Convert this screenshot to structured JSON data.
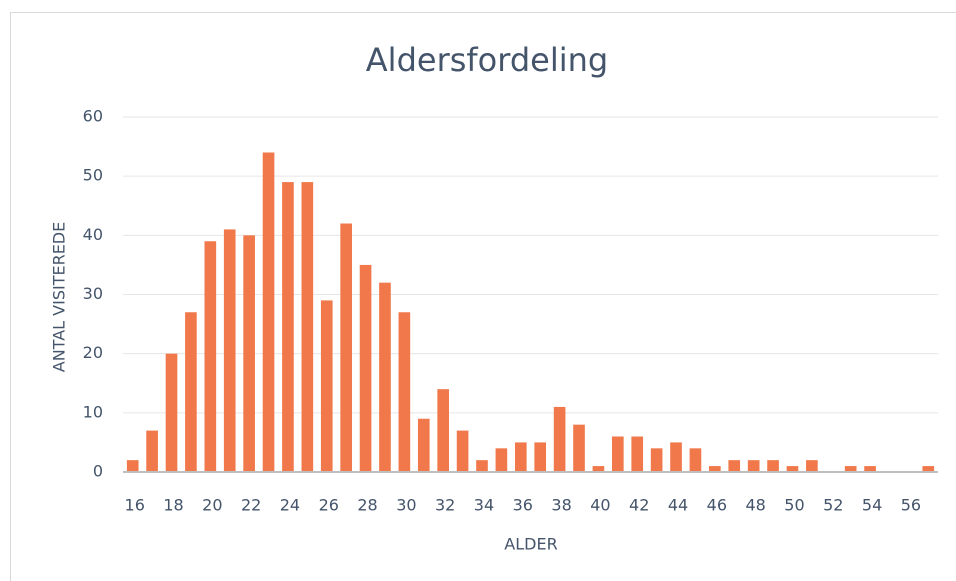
{
  "chart_data": {
    "type": "bar",
    "title": "Aldersfordeling",
    "x_label": "ALDER",
    "y_label": "ANTAL VISITEREDE",
    "categories": [
      16,
      null,
      18,
      null,
      20,
      null,
      22,
      null,
      24,
      null,
      26,
      null,
      28,
      null,
      30,
      null,
      32,
      null,
      34,
      null,
      36,
      null,
      38,
      null,
      40,
      null,
      42,
      null,
      44,
      null,
      46,
      null,
      48,
      null,
      50,
      null,
      52,
      null,
      54,
      null,
      56,
      null
    ],
    "values": [
      2,
      7,
      20,
      27,
      39,
      41,
      40,
      54,
      49,
      49,
      29,
      42,
      35,
      32,
      27,
      9,
      14,
      7,
      2,
      4,
      5,
      5,
      11,
      8,
      1,
      6,
      6,
      4,
      5,
      4,
      1,
      2,
      2,
      2,
      1,
      2,
      0,
      1,
      1,
      0,
      0,
      1
    ],
    "color": "#f0784a",
    "ylim": [
      0,
      60
    ],
    "yticks": [
      0,
      10,
      20,
      30,
      40,
      50,
      60
    ],
    "grid": true
  }
}
